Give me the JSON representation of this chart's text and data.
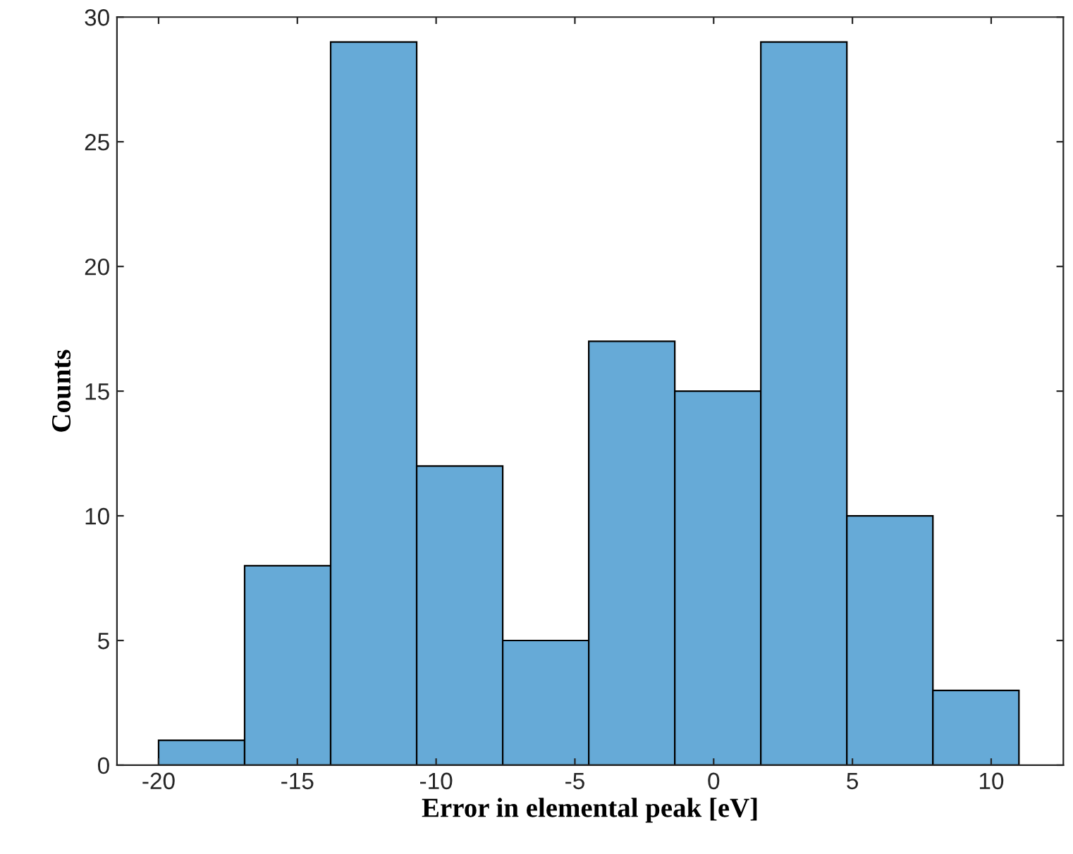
{
  "chart_data": {
    "type": "histogram",
    "xlabel": "Error in elemental peak [eV]",
    "ylabel": "Counts",
    "bins": [
      -20,
      -16.9,
      -13.8,
      -10.7,
      -7.6,
      -4.5,
      -1.4,
      1.7,
      4.8,
      7.9,
      11.0
    ],
    "values": [
      1,
      8,
      29,
      12,
      5,
      17,
      15,
      29,
      10,
      3
    ],
    "color": "#66aad7",
    "xlim": [
      -21.5,
      12.6
    ],
    "xticks": [
      -20,
      -15,
      -10,
      -5,
      0,
      5,
      10
    ],
    "ylim": [
      0,
      30
    ],
    "yticks": [
      0,
      5,
      10,
      15,
      20,
      25,
      30
    ],
    "grid": false
  }
}
